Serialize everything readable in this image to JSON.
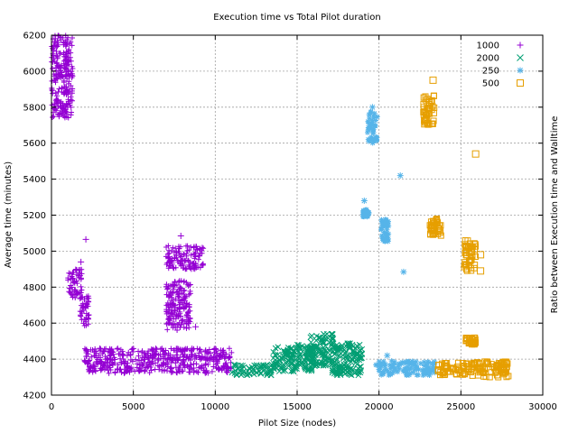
{
  "chart_data": {
    "type": "scatter",
    "title": "Execution time vs Total Pilot duration",
    "xlabel": "Pilot Size (nodes)",
    "ylabel": "Average time (minutes)",
    "y2label": "Ratio between Execution time and Walltime",
    "xlim": [
      0,
      30000
    ],
    "ylim": [
      4200,
      6200
    ],
    "xticks": [
      0,
      5000,
      10000,
      15000,
      20000,
      25000,
      30000
    ],
    "yticks": [
      4200,
      4400,
      4600,
      4800,
      5000,
      5200,
      5400,
      5600,
      5800,
      6000,
      6200
    ],
    "grid": true,
    "legend_position": "top-right",
    "series": [
      {
        "name": "1000",
        "marker": "plus",
        "color": "#9400d3",
        "clusters": [
          {
            "x": [
              0,
              1300
            ],
            "y": [
              5740,
              6200
            ]
          },
          {
            "x": [
              1000,
              1900
            ],
            "y": [
              4740,
              4900
            ]
          },
          {
            "x": [
              1700,
              2300
            ],
            "y": [
              4580,
              4760
            ]
          },
          {
            "x": [
              2000,
              11000
            ],
            "y": [
              4320,
              4460
            ]
          },
          {
            "x": [
              7000,
              8500
            ],
            "y": [
              4560,
              4840
            ]
          },
          {
            "x": [
              7000,
              9300
            ],
            "y": [
              4900,
              5030
            ]
          }
        ],
        "points": [
          {
            "x": 2100,
            "y": 5065
          },
          {
            "x": 1800,
            "y": 4940
          },
          {
            "x": 7900,
            "y": 5085
          },
          {
            "x": 8800,
            "y": 4580
          },
          {
            "x": 7600,
            "y": 4625
          }
        ]
      },
      {
        "name": "2000",
        "marker": "cross",
        "color": "#009e73",
        "clusters": [
          {
            "x": [
              11000,
              13500
            ],
            "y": [
              4310,
              4370
            ]
          },
          {
            "x": [
              13500,
              16000
            ],
            "y": [
              4330,
              4480
            ]
          },
          {
            "x": [
              15800,
              17200
            ],
            "y": [
              4360,
              4540
            ]
          },
          {
            "x": [
              17100,
              19000
            ],
            "y": [
              4310,
              4490
            ]
          }
        ],
        "points": []
      },
      {
        "name": "250",
        "marker": "star",
        "color": "#56b4e9",
        "clusters": [
          {
            "x": [
              19000,
              19400
            ],
            "y": [
              5190,
              5230
            ]
          },
          {
            "x": [
              19300,
              19900
            ],
            "y": [
              5600,
              5780
            ]
          },
          {
            "x": [
              20100,
              20600
            ],
            "y": [
              5050,
              5180
            ]
          },
          {
            "x": [
              19800,
              23400
            ],
            "y": [
              4310,
              4390
            ]
          }
        ],
        "points": [
          {
            "x": 19600,
            "y": 5800
          },
          {
            "x": 19100,
            "y": 5280
          },
          {
            "x": 21300,
            "y": 5420
          },
          {
            "x": 21500,
            "y": 4885
          },
          {
            "x": 20500,
            "y": 4420
          }
        ]
      },
      {
        "name": "500",
        "marker": "square",
        "color": "#e69f00",
        "clusters": [
          {
            "x": [
              22700,
              23400
            ],
            "y": [
              5700,
              5870
            ]
          },
          {
            "x": [
              23100,
              23800
            ],
            "y": [
              5080,
              5180
            ]
          },
          {
            "x": [
              25200,
              25900
            ],
            "y": [
              4890,
              5060
            ]
          },
          {
            "x": [
              25300,
              25900
            ],
            "y": [
              4480,
              4520
            ]
          },
          {
            "x": [
              23600,
              25500
            ],
            "y": [
              4310,
              4380
            ]
          },
          {
            "x": [
              25600,
              27900
            ],
            "y": [
              4300,
              4390
            ]
          }
        ],
        "points": [
          {
            "x": 23300,
            "y": 5950
          },
          {
            "x": 25900,
            "y": 5540
          },
          {
            "x": 26200,
            "y": 4980
          },
          {
            "x": 26200,
            "y": 4890
          }
        ]
      }
    ]
  }
}
